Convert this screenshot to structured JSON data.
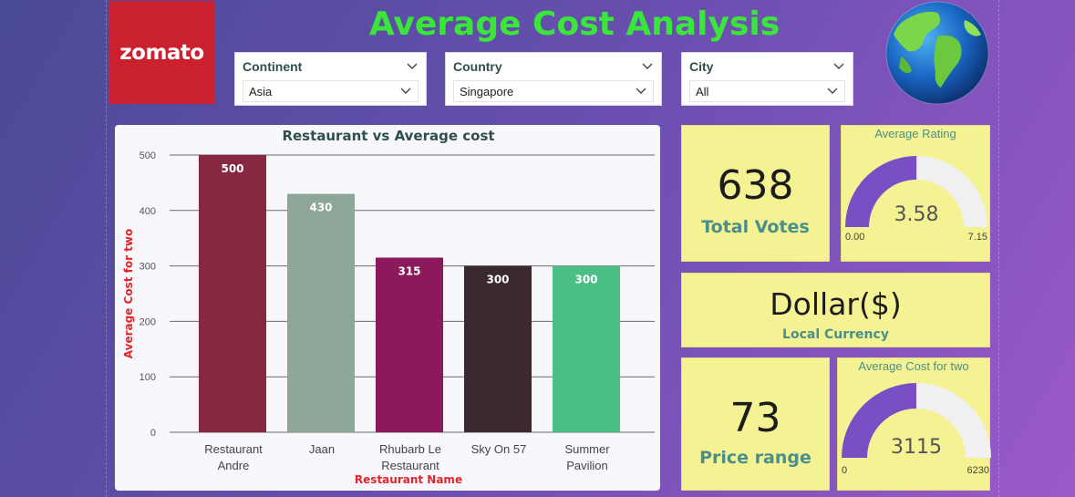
{
  "header": {
    "logo_text": "zomato",
    "title": "Average Cost Analysis"
  },
  "filters": [
    {
      "label": "Continent",
      "value": "Asia"
    },
    {
      "label": "Country",
      "value": "Singapore"
    },
    {
      "label": "City",
      "value": "All"
    }
  ],
  "kpis": {
    "total_votes": {
      "value": "638",
      "label": "Total Votes"
    },
    "currency": {
      "value": "Dollar($)",
      "label": "Local Currency"
    },
    "price_range": {
      "value": "73",
      "label": "Price range"
    }
  },
  "gauges": {
    "rating": {
      "title": "Average Rating",
      "value": 3.58,
      "value_text": "3.58",
      "min": 0,
      "max": 7.15,
      "min_text": "0.00",
      "max_text": "7.15"
    },
    "cost": {
      "title": "Average Cost for two",
      "value": 3115,
      "value_text": "3115",
      "min": 0,
      "max": 6230,
      "min_text": "0",
      "max_text": "6230"
    }
  },
  "colors": {
    "title": "#39e639",
    "zomato_red": "#cb202d",
    "kpi_bg": "#f5f294",
    "gauge_fill": "#7a4fc4",
    "gauge_track": "#f0f0f0",
    "axis_title": "#e0262b"
  },
  "chart_data": {
    "type": "bar",
    "title": "Restaurant vs Average cost",
    "xlabel": "Restaurant Name",
    "ylabel": "Average Cost for two",
    "ylim": [
      0,
      500
    ],
    "yticks": [
      "0",
      "100",
      "200",
      "300",
      "400",
      "500"
    ],
    "categories": [
      [
        "Restaurant",
        "Andre"
      ],
      [
        "Jaan"
      ],
      [
        "Rhubarb Le",
        "Restaurant"
      ],
      [
        "Sky On 57"
      ],
      [
        "Summer",
        "Pavilion"
      ]
    ],
    "values": [
      500,
      430,
      315,
      300,
      300
    ],
    "labels": [
      "500",
      "430",
      "315",
      "300",
      "300"
    ],
    "bar_colors": [
      "#862840",
      "#8ea69a",
      "#8a1a5c",
      "#3a2a30",
      "#4cbf86"
    ],
    "grid": true
  }
}
